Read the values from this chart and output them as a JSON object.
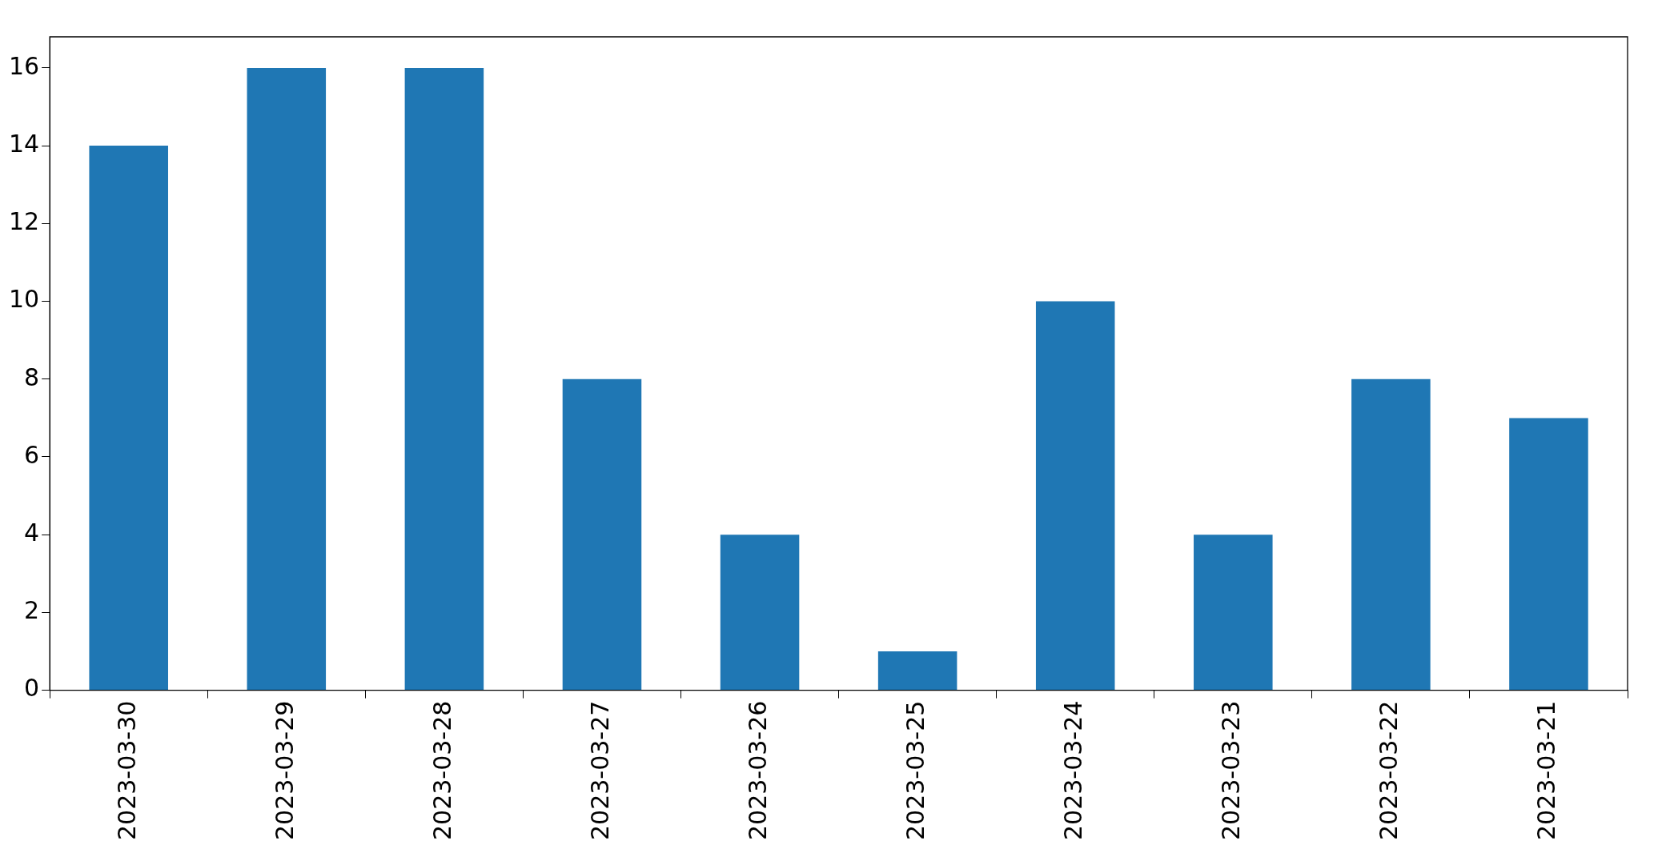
{
  "chart_data": {
    "type": "bar",
    "categories": [
      "2023-03-30",
      "2023-03-29",
      "2023-03-28",
      "2023-03-27",
      "2023-03-26",
      "2023-03-25",
      "2023-03-24",
      "2023-03-23",
      "2023-03-22",
      "2023-03-21"
    ],
    "values": [
      14,
      16,
      16,
      8,
      4,
      1,
      10,
      4,
      8,
      7
    ],
    "color": "#1f77b4",
    "ylim": [
      0,
      16.8
    ],
    "yticks": [
      0,
      2,
      4,
      6,
      8,
      10,
      12,
      14,
      16
    ],
    "grid": false,
    "legend": false
  }
}
